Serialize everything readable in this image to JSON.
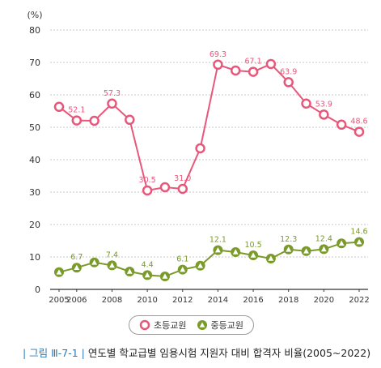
{
  "chart_data": {
    "type": "line",
    "ylabel": "(%)",
    "ylim": [
      0,
      80
    ],
    "yticks": [
      0,
      10,
      20,
      30,
      40,
      50,
      60,
      70,
      80
    ],
    "x": [
      2005,
      2006,
      2007,
      2008,
      2009,
      2010,
      2011,
      2012,
      2013,
      2014,
      2015,
      2016,
      2017,
      2018,
      2019,
      2020,
      2021,
      2022
    ],
    "xtick_labels": [
      "2005",
      "2006",
      "2008",
      "2010",
      "2012",
      "2014",
      "2016",
      "2018",
      "2020",
      "2022"
    ],
    "xtick_years": [
      2005,
      2006,
      2008,
      2010,
      2012,
      2014,
      2016,
      2018,
      2020,
      2022
    ],
    "grid": true,
    "legend_position": "bottom-center",
    "series": [
      {
        "name": "초등교원",
        "color": "#e8577a",
        "marker": "circle",
        "values": [
          56.3,
          52.1,
          52.0,
          57.3,
          52.3,
          30.5,
          31.5,
          31.0,
          43.5,
          69.3,
          67.5,
          67.1,
          69.5,
          63.9,
          57.3,
          53.9,
          50.8,
          48.6
        ],
        "labels": {
          "1": "52.1",
          "3": "57.3",
          "5": "30.5",
          "7": "31.0",
          "9": "69.3",
          "11": "67.1",
          "13": "63.9",
          "15": "53.9",
          "17": "48.6"
        }
      },
      {
        "name": "중등교원",
        "color": "#7a9a2a",
        "marker": "triangle",
        "values": [
          5.3,
          6.7,
          8.3,
          7.4,
          5.5,
          4.4,
          4.0,
          6.1,
          7.3,
          12.1,
          11.5,
          10.5,
          9.5,
          12.3,
          11.8,
          12.4,
          14.2,
          14.6
        ],
        "labels": {
          "1": "6.7",
          "3": "7.4",
          "5": "4.4",
          "7": "6.1",
          "9": "12.1",
          "11": "10.5",
          "13": "12.3",
          "15": "12.4",
          "17": "14.6"
        }
      }
    ]
  },
  "caption": {
    "prefix": "| 그림 Ⅲ-7-1 |",
    "text": "연도별 학교급별 임용시험 지원자 대비 합격자 비율(2005~2022)"
  }
}
